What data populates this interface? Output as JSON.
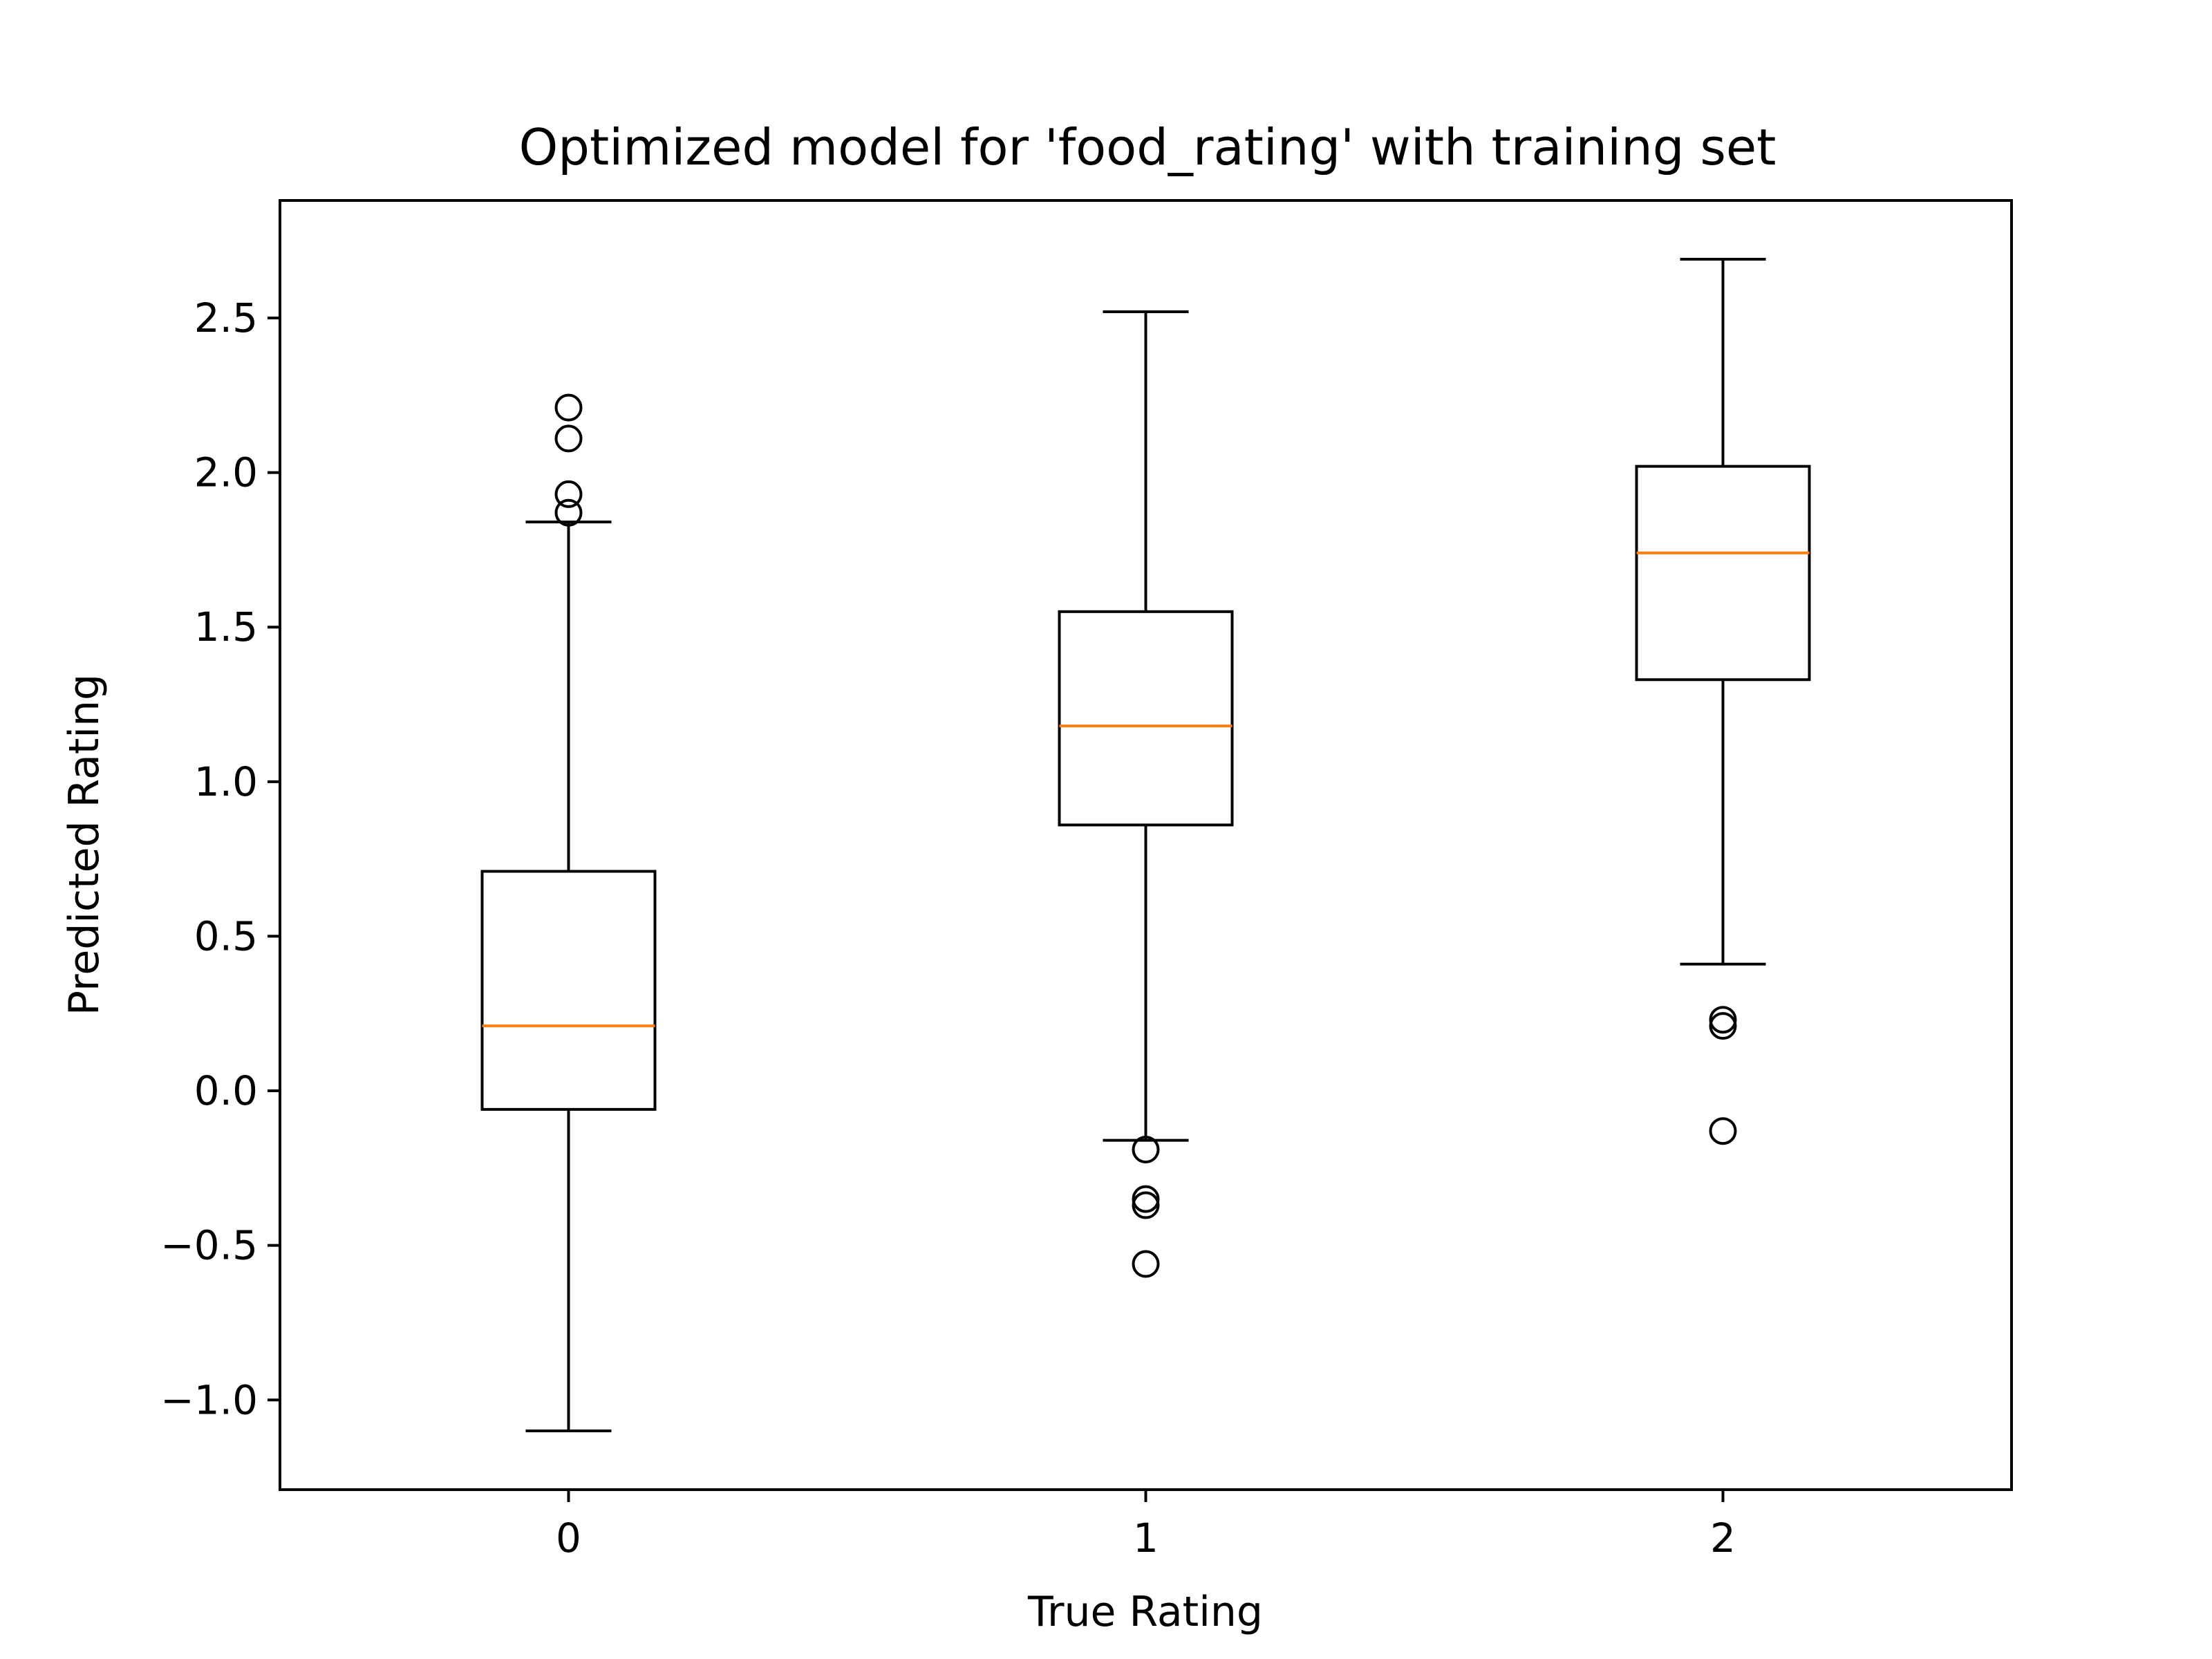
{
  "chart_data": {
    "type": "boxplot",
    "title": "Optimized model for 'food_rating' with training set",
    "xlabel": "True Rating",
    "ylabel": "Predicted Rating",
    "ylim": [
      -1.29,
      2.88
    ],
    "yticks": [
      -1.0,
      -0.5,
      0.0,
      0.5,
      1.0,
      1.5,
      2.0,
      2.5
    ],
    "ytick_labels": [
      "−1.0",
      "−0.5",
      "0.0",
      "0.5",
      "1.0",
      "1.5",
      "2.0",
      "2.5"
    ],
    "xlim": [
      -0.5,
      2.5
    ],
    "categories": [
      "0",
      "1",
      "2"
    ],
    "boxes": [
      {
        "x": 0,
        "whisker_low": -1.1,
        "q1": -0.06,
        "median": 0.21,
        "q3": 0.71,
        "whisker_high": 1.84,
        "outliers": [
          1.87,
          1.93,
          2.11,
          2.21
        ]
      },
      {
        "x": 1,
        "whisker_low": -0.16,
        "q1": 0.86,
        "median": 1.18,
        "q3": 1.55,
        "whisker_high": 2.52,
        "outliers": [
          -0.19,
          -0.35,
          -0.37,
          -0.56
        ]
      },
      {
        "x": 2,
        "whisker_low": 0.41,
        "q1": 1.33,
        "median": 1.74,
        "q3": 2.02,
        "whisker_high": 2.69,
        "outliers": [
          0.23,
          0.21,
          -0.13
        ]
      }
    ],
    "colors": {
      "box": "#000000",
      "median": "#ff7f0e"
    },
    "grid": false,
    "legend": "none"
  }
}
